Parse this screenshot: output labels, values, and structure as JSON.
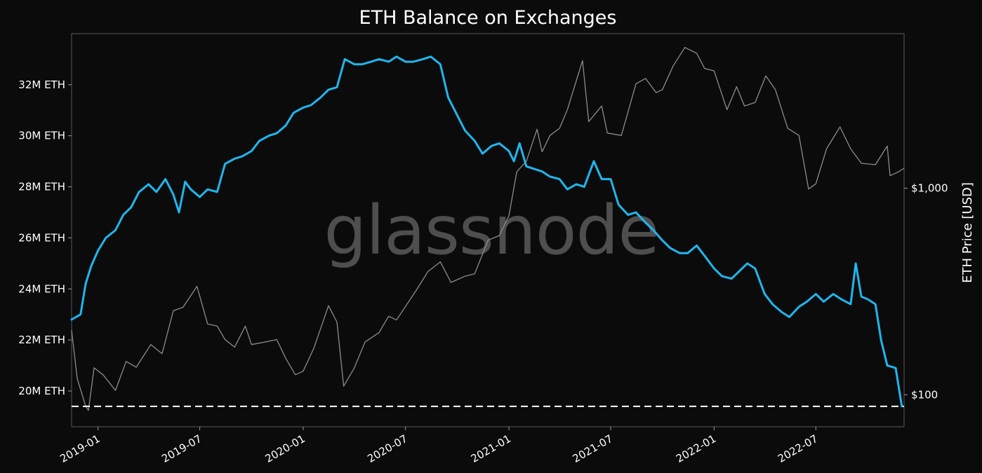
{
  "chart_data": {
    "type": "line",
    "title": "ETH Balance on Exchanges",
    "watermark": "glassnode",
    "x_axis": {
      "type": "date",
      "range": [
        "2018-11-15",
        "2022-12-05"
      ],
      "ticks": [
        "2019-01",
        "2019-07",
        "2020-01",
        "2020-07",
        "2021-01",
        "2021-07",
        "2022-01",
        "2022-07"
      ]
    },
    "y_left": {
      "range_million": [
        18.6,
        34.0
      ],
      "ticks": [
        {
          "value": 20,
          "label": "20M ETH"
        },
        {
          "value": 22,
          "label": "22M ETH"
        },
        {
          "value": 24,
          "label": "24M ETH"
        },
        {
          "value": 26,
          "label": "26M ETH"
        },
        {
          "value": 28,
          "label": "28M ETH"
        },
        {
          "value": 30,
          "label": "30M ETH"
        },
        {
          "value": 32,
          "label": "32M ETH"
        }
      ]
    },
    "y_right": {
      "scale": "log",
      "label": "ETH Price [USD]",
      "range": [
        70,
        5600
      ],
      "ticks": [
        {
          "value": 100,
          "label": "$100"
        },
        {
          "value": 1000,
          "label": "$1,000"
        }
      ]
    },
    "reference_line": {
      "value_million": 19.4,
      "style": "dashed",
      "color": "#ffffff"
    },
    "grid": false,
    "series": [
      {
        "axis": "left",
        "color": "#1fb6ee",
        "points": [
          [
            "2018-11-15",
            22.8
          ],
          [
            "2018-12-01",
            23.0
          ],
          [
            "2018-12-10",
            24.2
          ],
          [
            "2018-12-20",
            24.9
          ],
          [
            "2019-01-01",
            25.5
          ],
          [
            "2019-01-15",
            26.0
          ],
          [
            "2019-02-01",
            26.3
          ],
          [
            "2019-02-15",
            26.9
          ],
          [
            "2019-03-01",
            27.2
          ],
          [
            "2019-03-15",
            27.8
          ],
          [
            "2019-04-01",
            28.1
          ],
          [
            "2019-04-15",
            27.8
          ],
          [
            "2019-05-01",
            28.3
          ],
          [
            "2019-05-15",
            27.7
          ],
          [
            "2019-05-25",
            27.0
          ],
          [
            "2019-06-05",
            28.2
          ],
          [
            "2019-06-15",
            27.9
          ],
          [
            "2019-07-01",
            27.6
          ],
          [
            "2019-07-15",
            27.9
          ],
          [
            "2019-08-01",
            27.8
          ],
          [
            "2019-08-15",
            28.9
          ],
          [
            "2019-09-01",
            29.1
          ],
          [
            "2019-09-15",
            29.2
          ],
          [
            "2019-10-01",
            29.4
          ],
          [
            "2019-10-15",
            29.8
          ],
          [
            "2019-11-01",
            30.0
          ],
          [
            "2019-11-15",
            30.1
          ],
          [
            "2019-12-01",
            30.4
          ],
          [
            "2019-12-15",
            30.9
          ],
          [
            "2020-01-01",
            31.1
          ],
          [
            "2020-01-15",
            31.2
          ],
          [
            "2020-02-01",
            31.5
          ],
          [
            "2020-02-15",
            31.8
          ],
          [
            "2020-03-01",
            31.9
          ],
          [
            "2020-03-15",
            33.0
          ],
          [
            "2020-04-01",
            32.8
          ],
          [
            "2020-04-15",
            32.8
          ],
          [
            "2020-05-01",
            32.9
          ],
          [
            "2020-05-15",
            33.0
          ],
          [
            "2020-06-01",
            32.9
          ],
          [
            "2020-06-15",
            33.1
          ],
          [
            "2020-07-01",
            32.9
          ],
          [
            "2020-07-15",
            32.9
          ],
          [
            "2020-08-01",
            33.0
          ],
          [
            "2020-08-15",
            33.1
          ],
          [
            "2020-09-01",
            32.8
          ],
          [
            "2020-09-15",
            31.5
          ],
          [
            "2020-10-01",
            30.8
          ],
          [
            "2020-10-15",
            30.2
          ],
          [
            "2020-11-01",
            29.8
          ],
          [
            "2020-11-15",
            29.3
          ],
          [
            "2020-12-01",
            29.6
          ],
          [
            "2020-12-15",
            29.7
          ],
          [
            "2021-01-01",
            29.4
          ],
          [
            "2021-01-10",
            29.0
          ],
          [
            "2021-01-20",
            29.7
          ],
          [
            "2021-02-01",
            28.8
          ],
          [
            "2021-02-15",
            28.7
          ],
          [
            "2021-03-01",
            28.6
          ],
          [
            "2021-03-15",
            28.4
          ],
          [
            "2021-04-01",
            28.3
          ],
          [
            "2021-04-15",
            27.9
          ],
          [
            "2021-05-01",
            28.1
          ],
          [
            "2021-05-15",
            28.0
          ],
          [
            "2021-06-01",
            29.0
          ],
          [
            "2021-06-15",
            28.3
          ],
          [
            "2021-07-01",
            28.3
          ],
          [
            "2021-07-15",
            27.3
          ],
          [
            "2021-08-01",
            26.9
          ],
          [
            "2021-08-15",
            27.0
          ],
          [
            "2021-09-01",
            26.6
          ],
          [
            "2021-09-15",
            26.3
          ],
          [
            "2021-10-01",
            25.9
          ],
          [
            "2021-10-15",
            25.6
          ],
          [
            "2021-11-01",
            25.4
          ],
          [
            "2021-11-15",
            25.4
          ],
          [
            "2021-12-01",
            25.7
          ],
          [
            "2021-12-15",
            25.3
          ],
          [
            "2022-01-01",
            24.8
          ],
          [
            "2022-01-15",
            24.5
          ],
          [
            "2022-02-01",
            24.4
          ],
          [
            "2022-02-15",
            24.7
          ],
          [
            "2022-03-01",
            25.0
          ],
          [
            "2022-03-15",
            24.8
          ],
          [
            "2022-04-01",
            23.8
          ],
          [
            "2022-04-15",
            23.4
          ],
          [
            "2022-05-01",
            23.1
          ],
          [
            "2022-05-15",
            22.9
          ],
          [
            "2022-06-01",
            23.3
          ],
          [
            "2022-06-15",
            23.5
          ],
          [
            "2022-07-01",
            23.8
          ],
          [
            "2022-07-15",
            23.5
          ],
          [
            "2022-08-01",
            23.8
          ],
          [
            "2022-08-15",
            23.6
          ],
          [
            "2022-09-01",
            23.4
          ],
          [
            "2022-09-10",
            25.0
          ],
          [
            "2022-09-20",
            23.7
          ],
          [
            "2022-10-01",
            23.6
          ],
          [
            "2022-10-15",
            23.4
          ],
          [
            "2022-10-25",
            22.0
          ],
          [
            "2022-11-05",
            21.0
          ],
          [
            "2022-11-20",
            20.9
          ],
          [
            "2022-12-01",
            19.4
          ]
        ]
      },
      {
        "axis": "right",
        "color": "#8c8c8c",
        "points": [
          [
            "2018-11-15",
            205
          ],
          [
            "2018-11-25",
            120
          ],
          [
            "2018-12-10",
            88
          ],
          [
            "2018-12-15",
            84
          ],
          [
            "2018-12-25",
            135
          ],
          [
            "2019-01-10",
            125
          ],
          [
            "2019-02-01",
            105
          ],
          [
            "2019-02-20",
            145
          ],
          [
            "2019-03-10",
            136
          ],
          [
            "2019-04-05",
            175
          ],
          [
            "2019-04-25",
            158
          ],
          [
            "2019-05-15",
            255
          ],
          [
            "2019-06-01",
            265
          ],
          [
            "2019-06-26",
            335
          ],
          [
            "2019-07-15",
            220
          ],
          [
            "2019-08-01",
            215
          ],
          [
            "2019-08-15",
            185
          ],
          [
            "2019-09-01",
            170
          ],
          [
            "2019-09-20",
            215
          ],
          [
            "2019-10-01",
            175
          ],
          [
            "2019-10-25",
            180
          ],
          [
            "2019-11-15",
            185
          ],
          [
            "2019-12-01",
            150
          ],
          [
            "2019-12-18",
            125
          ],
          [
            "2020-01-01",
            130
          ],
          [
            "2020-01-20",
            168
          ],
          [
            "2020-02-15",
            270
          ],
          [
            "2020-03-01",
            225
          ],
          [
            "2020-03-13",
            110
          ],
          [
            "2020-04-01",
            135
          ],
          [
            "2020-04-20",
            180
          ],
          [
            "2020-05-15",
            200
          ],
          [
            "2020-06-01",
            240
          ],
          [
            "2020-06-15",
            230
          ],
          [
            "2020-07-20",
            320
          ],
          [
            "2020-08-10",
            395
          ],
          [
            "2020-09-01",
            440
          ],
          [
            "2020-09-20",
            350
          ],
          [
            "2020-10-15",
            375
          ],
          [
            "2020-11-01",
            385
          ],
          [
            "2020-11-25",
            560
          ],
          [
            "2020-12-15",
            590
          ],
          [
            "2021-01-01",
            735
          ],
          [
            "2021-01-15",
            1200
          ],
          [
            "2021-02-01",
            1350
          ],
          [
            "2021-02-20",
            1930
          ],
          [
            "2021-03-01",
            1500
          ],
          [
            "2021-03-15",
            1800
          ],
          [
            "2021-04-01",
            1950
          ],
          [
            "2021-04-15",
            2400
          ],
          [
            "2021-05-12",
            4150
          ],
          [
            "2021-05-23",
            2100
          ],
          [
            "2021-06-15",
            2500
          ],
          [
            "2021-06-25",
            1850
          ],
          [
            "2021-07-20",
            1800
          ],
          [
            "2021-08-15",
            3200
          ],
          [
            "2021-09-01",
            3400
          ],
          [
            "2021-09-20",
            2900
          ],
          [
            "2021-10-01",
            3000
          ],
          [
            "2021-10-20",
            3900
          ],
          [
            "2021-11-10",
            4800
          ],
          [
            "2021-12-01",
            4500
          ],
          [
            "2021-12-15",
            3800
          ],
          [
            "2022-01-01",
            3700
          ],
          [
            "2022-01-24",
            2400
          ],
          [
            "2022-02-10",
            3100
          ],
          [
            "2022-02-24",
            2500
          ],
          [
            "2022-03-15",
            2600
          ],
          [
            "2022-04-03",
            3500
          ],
          [
            "2022-04-20",
            3000
          ],
          [
            "2022-05-12",
            1950
          ],
          [
            "2022-06-01",
            1800
          ],
          [
            "2022-06-18",
            990
          ],
          [
            "2022-07-01",
            1050
          ],
          [
            "2022-07-20",
            1550
          ],
          [
            "2022-08-13",
            1980
          ],
          [
            "2022-09-01",
            1550
          ],
          [
            "2022-09-20",
            1320
          ],
          [
            "2022-10-15",
            1300
          ],
          [
            "2022-11-05",
            1600
          ],
          [
            "2022-11-10",
            1150
          ],
          [
            "2022-11-25",
            1200
          ],
          [
            "2022-12-05",
            1250
          ]
        ]
      }
    ]
  }
}
